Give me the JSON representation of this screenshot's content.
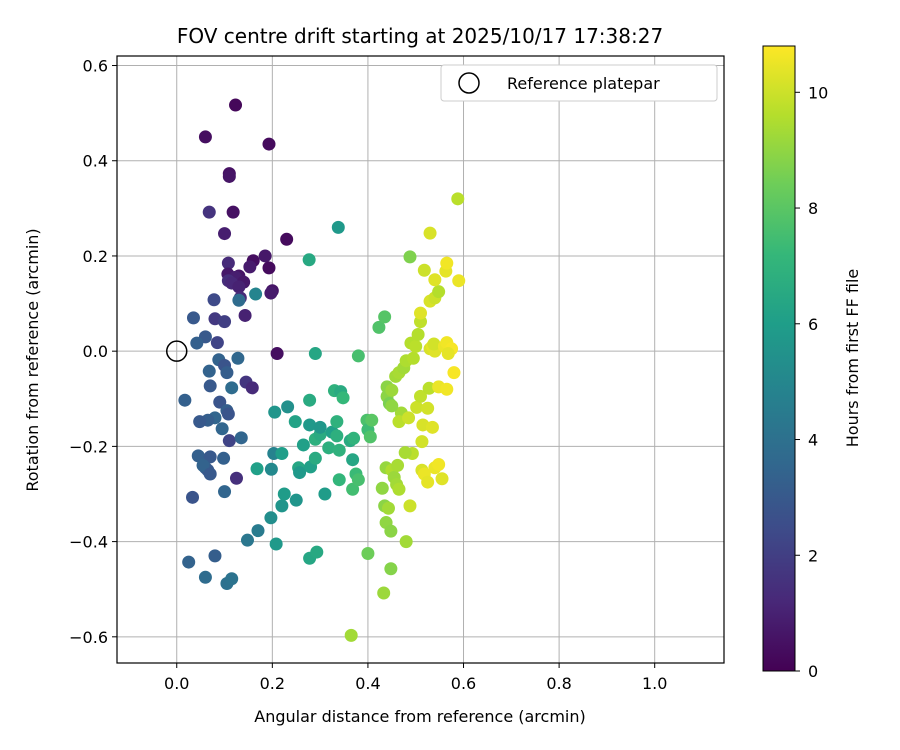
{
  "chart_data": {
    "type": "scatter",
    "title": "FOV centre drift starting at 2025/10/17 17:38:27",
    "xlabel": "Angular distance from reference (arcmin)",
    "ylabel": "Rotation from reference (arcmin)",
    "xlim": [
      -0.125,
      1.145
    ],
    "ylim": [
      -0.655,
      0.62
    ],
    "xticks": [
      0.0,
      0.2,
      0.4,
      0.6,
      0.8,
      1.0
    ],
    "xtick_labels": [
      "0.0",
      "0.2",
      "0.4",
      "0.6",
      "0.8",
      "1.0"
    ],
    "yticks": [
      -0.6,
      -0.4,
      -0.2,
      0.0,
      0.2,
      0.4,
      0.6
    ],
    "ytick_labels": [
      "−0.6",
      "−0.4",
      "−0.2",
      "0.0",
      "0.2",
      "0.4",
      "0.6"
    ],
    "grid": true,
    "legend": {
      "placement": "top-right",
      "entries": [
        "Reference platepar"
      ]
    },
    "reference_point": {
      "x": 0.0,
      "y": 0.0
    },
    "colorbar": {
      "label": "Hours from first FF file",
      "range": [
        0,
        10.8
      ],
      "ticks": [
        0,
        2,
        4,
        6,
        8,
        10
      ],
      "tick_labels": [
        "0",
        "2",
        "4",
        "6",
        "8",
        "10"
      ],
      "colormap": "viridis"
    },
    "points": [
      {
        "x": 0.123,
        "y": 0.517,
        "h": 0.2
      },
      {
        "x": 0.06,
        "y": 0.45,
        "h": 0.4
      },
      {
        "x": 0.193,
        "y": 0.435,
        "h": 0.3
      },
      {
        "x": 0.11,
        "y": 0.373,
        "h": 0.5
      },
      {
        "x": 0.11,
        "y": 0.367,
        "h": 0.6
      },
      {
        "x": 0.068,
        "y": 0.292,
        "h": 1.6
      },
      {
        "x": 0.118,
        "y": 0.292,
        "h": 0.5
      },
      {
        "x": 0.1,
        "y": 0.247,
        "h": 0.9
      },
      {
        "x": 0.23,
        "y": 0.235,
        "h": 0.3
      },
      {
        "x": 0.185,
        "y": 0.2,
        "h": 0.7
      },
      {
        "x": 0.16,
        "y": 0.19,
        "h": 0.4
      },
      {
        "x": 0.108,
        "y": 0.185,
        "h": 1.3
      },
      {
        "x": 0.153,
        "y": 0.177,
        "h": 0.8
      },
      {
        "x": 0.193,
        "y": 0.175,
        "h": 0.3
      },
      {
        "x": 0.107,
        "y": 0.162,
        "h": 0.7
      },
      {
        "x": 0.13,
        "y": 0.158,
        "h": 0.6
      },
      {
        "x": 0.123,
        "y": 0.155,
        "h": 0.9
      },
      {
        "x": 0.108,
        "y": 0.148,
        "h": 1.4
      },
      {
        "x": 0.14,
        "y": 0.145,
        "h": 0.7
      },
      {
        "x": 0.115,
        "y": 0.143,
        "h": 1.2
      },
      {
        "x": 0.13,
        "y": 0.135,
        "h": 1.0
      },
      {
        "x": 0.2,
        "y": 0.127,
        "h": 0.6
      },
      {
        "x": 0.197,
        "y": 0.122,
        "h": 0.8
      },
      {
        "x": 0.165,
        "y": 0.12,
        "h": 4.9
      },
      {
        "x": 0.133,
        "y": 0.112,
        "h": 1.3
      },
      {
        "x": 0.13,
        "y": 0.107,
        "h": 3.8
      },
      {
        "x": 0.078,
        "y": 0.108,
        "h": 2.4
      },
      {
        "x": 0.143,
        "y": 0.075,
        "h": 1.0
      },
      {
        "x": 0.035,
        "y": 0.07,
        "h": 3.0
      },
      {
        "x": 0.08,
        "y": 0.068,
        "h": 1.8
      },
      {
        "x": 0.1,
        "y": 0.062,
        "h": 2.0
      },
      {
        "x": 0.06,
        "y": 0.03,
        "h": 3.0
      },
      {
        "x": 0.042,
        "y": 0.017,
        "h": 3.3
      },
      {
        "x": 0.085,
        "y": 0.018,
        "h": 2.2
      },
      {
        "x": 0.21,
        "y": -0.005,
        "h": 0.4
      },
      {
        "x": 0.088,
        "y": -0.018,
        "h": 3.4
      },
      {
        "x": 0.128,
        "y": -0.015,
        "h": 3.6
      },
      {
        "x": 0.1,
        "y": -0.03,
        "h": 2.8
      },
      {
        "x": 0.068,
        "y": -0.042,
        "h": 3.4
      },
      {
        "x": 0.105,
        "y": -0.045,
        "h": 3.2
      },
      {
        "x": 0.145,
        "y": -0.065,
        "h": 1.7
      },
      {
        "x": 0.07,
        "y": -0.073,
        "h": 3.0
      },
      {
        "x": 0.115,
        "y": -0.077,
        "h": 3.8
      },
      {
        "x": 0.158,
        "y": -0.077,
        "h": 1.3
      },
      {
        "x": 0.017,
        "y": -0.103,
        "h": 3.3
      },
      {
        "x": 0.09,
        "y": -0.107,
        "h": 2.8
      },
      {
        "x": 0.105,
        "y": -0.125,
        "h": 3.2
      },
      {
        "x": 0.108,
        "y": -0.132,
        "h": 2.8
      },
      {
        "x": 0.08,
        "y": -0.14,
        "h": 3.5
      },
      {
        "x": 0.065,
        "y": -0.145,
        "h": 3.2
      },
      {
        "x": 0.048,
        "y": -0.148,
        "h": 3.0
      },
      {
        "x": 0.095,
        "y": -0.163,
        "h": 3.5
      },
      {
        "x": 0.11,
        "y": -0.188,
        "h": 2.2
      },
      {
        "x": 0.135,
        "y": -0.182,
        "h": 3.5
      },
      {
        "x": 0.045,
        "y": -0.22,
        "h": 3.3
      },
      {
        "x": 0.07,
        "y": -0.222,
        "h": 3.0
      },
      {
        "x": 0.098,
        "y": -0.225,
        "h": 3.3
      },
      {
        "x": 0.06,
        "y": -0.245,
        "h": 3.2
      },
      {
        "x": 0.065,
        "y": -0.25,
        "h": 3.0
      },
      {
        "x": 0.055,
        "y": -0.24,
        "h": 3.4
      },
      {
        "x": 0.07,
        "y": -0.258,
        "h": 3.0
      },
      {
        "x": 0.125,
        "y": -0.267,
        "h": 1.5
      },
      {
        "x": 0.1,
        "y": -0.295,
        "h": 3.5
      },
      {
        "x": 0.033,
        "y": -0.307,
        "h": 2.8
      },
      {
        "x": 0.025,
        "y": -0.443,
        "h": 3.4
      },
      {
        "x": 0.06,
        "y": -0.475,
        "h": 3.8
      },
      {
        "x": 0.08,
        "y": -0.43,
        "h": 3.2
      },
      {
        "x": 0.105,
        "y": -0.488,
        "h": 4.0
      },
      {
        "x": 0.115,
        "y": -0.478,
        "h": 4.1
      },
      {
        "x": 0.148,
        "y": -0.397,
        "h": 4.3
      },
      {
        "x": 0.17,
        "y": -0.377,
        "h": 4.5
      },
      {
        "x": 0.197,
        "y": -0.35,
        "h": 5.3
      },
      {
        "x": 0.208,
        "y": -0.405,
        "h": 5.8
      },
      {
        "x": 0.22,
        "y": -0.325,
        "h": 5.6
      },
      {
        "x": 0.225,
        "y": -0.3,
        "h": 5.9
      },
      {
        "x": 0.25,
        "y": -0.313,
        "h": 5.6
      },
      {
        "x": 0.198,
        "y": -0.248,
        "h": 5.1
      },
      {
        "x": 0.203,
        "y": -0.215,
        "h": 4.8
      },
      {
        "x": 0.22,
        "y": -0.215,
        "h": 6.0
      },
      {
        "x": 0.168,
        "y": -0.247,
        "h": 6.1
      },
      {
        "x": 0.205,
        "y": -0.128,
        "h": 5.6
      },
      {
        "x": 0.232,
        "y": -0.117,
        "h": 5.4
      },
      {
        "x": 0.248,
        "y": -0.148,
        "h": 6.2
      },
      {
        "x": 0.265,
        "y": -0.197,
        "h": 6.1
      },
      {
        "x": 0.255,
        "y": -0.245,
        "h": 6.4
      },
      {
        "x": 0.257,
        "y": -0.255,
        "h": 5.8
      },
      {
        "x": 0.28,
        "y": -0.243,
        "h": 6.1
      },
      {
        "x": 0.29,
        "y": -0.225,
        "h": 6.6
      },
      {
        "x": 0.278,
        "y": -0.435,
        "h": 6.4
      },
      {
        "x": 0.293,
        "y": -0.422,
        "h": 6.5
      },
      {
        "x": 0.31,
        "y": -0.3,
        "h": 5.9
      },
      {
        "x": 0.29,
        "y": -0.185,
        "h": 6.8
      },
      {
        "x": 0.3,
        "y": -0.175,
        "h": 6.6
      },
      {
        "x": 0.278,
        "y": -0.155,
        "h": 5.8
      },
      {
        "x": 0.3,
        "y": -0.16,
        "h": 5.7
      },
      {
        "x": 0.278,
        "y": -0.103,
        "h": 6.6
      },
      {
        "x": 0.318,
        "y": -0.203,
        "h": 6.8
      },
      {
        "x": 0.325,
        "y": -0.17,
        "h": 6.1
      },
      {
        "x": 0.335,
        "y": -0.178,
        "h": 6.8
      },
      {
        "x": 0.335,
        "y": -0.148,
        "h": 6.9
      },
      {
        "x": 0.33,
        "y": -0.083,
        "h": 6.9
      },
      {
        "x": 0.343,
        "y": -0.085,
        "h": 6.6
      },
      {
        "x": 0.34,
        "y": -0.208,
        "h": 6.9
      },
      {
        "x": 0.348,
        "y": -0.098,
        "h": 7.2
      },
      {
        "x": 0.363,
        "y": -0.188,
        "h": 6.6
      },
      {
        "x": 0.37,
        "y": -0.183,
        "h": 7.0
      },
      {
        "x": 0.368,
        "y": -0.228,
        "h": 6.4
      },
      {
        "x": 0.375,
        "y": -0.258,
        "h": 7.3
      },
      {
        "x": 0.368,
        "y": -0.29,
        "h": 7.5
      },
      {
        "x": 0.38,
        "y": -0.27,
        "h": 7.6
      },
      {
        "x": 0.34,
        "y": -0.27,
        "h": 7.1
      },
      {
        "x": 0.29,
        "y": -0.005,
        "h": 6.4
      },
      {
        "x": 0.277,
        "y": 0.192,
        "h": 6.5
      },
      {
        "x": 0.338,
        "y": 0.26,
        "h": 5.8
      },
      {
        "x": 0.38,
        "y": -0.01,
        "h": 7.6
      },
      {
        "x": 0.398,
        "y": -0.145,
        "h": 7.7
      },
      {
        "x": 0.4,
        "y": -0.165,
        "h": 7.4
      },
      {
        "x": 0.405,
        "y": -0.18,
        "h": 7.8
      },
      {
        "x": 0.408,
        "y": -0.145,
        "h": 8.0
      },
      {
        "x": 0.423,
        "y": 0.05,
        "h": 7.8
      },
      {
        "x": 0.435,
        "y": 0.072,
        "h": 7.9
      },
      {
        "x": 0.4,
        "y": -0.425,
        "h": 8.4
      },
      {
        "x": 0.365,
        "y": -0.597,
        "h": 9.3
      },
      {
        "x": 0.433,
        "y": -0.508,
        "h": 9.2
      },
      {
        "x": 0.448,
        "y": -0.457,
        "h": 8.8
      },
      {
        "x": 0.43,
        "y": -0.288,
        "h": 9.0
      },
      {
        "x": 0.435,
        "y": -0.325,
        "h": 8.9
      },
      {
        "x": 0.443,
        "y": -0.33,
        "h": 9.3
      },
      {
        "x": 0.438,
        "y": -0.36,
        "h": 9.0
      },
      {
        "x": 0.448,
        "y": -0.378,
        "h": 8.9
      },
      {
        "x": 0.48,
        "y": -0.4,
        "h": 9.3
      },
      {
        "x": 0.438,
        "y": -0.245,
        "h": 9.1
      },
      {
        "x": 0.45,
        "y": -0.25,
        "h": 9.5
      },
      {
        "x": 0.455,
        "y": -0.265,
        "h": 9.2
      },
      {
        "x": 0.46,
        "y": -0.28,
        "h": 9.3
      },
      {
        "x": 0.465,
        "y": -0.29,
        "h": 9.5
      },
      {
        "x": 0.488,
        "y": -0.325,
        "h": 10.0
      },
      {
        "x": 0.493,
        "y": -0.215,
        "h": 9.7
      },
      {
        "x": 0.478,
        "y": -0.213,
        "h": 9.4
      },
      {
        "x": 0.462,
        "y": -0.24,
        "h": 9.4
      },
      {
        "x": 0.47,
        "y": -0.13,
        "h": 9.3
      },
      {
        "x": 0.465,
        "y": -0.148,
        "h": 9.7
      },
      {
        "x": 0.485,
        "y": -0.14,
        "h": 10.0
      },
      {
        "x": 0.44,
        "y": -0.075,
        "h": 8.9
      },
      {
        "x": 0.44,
        "y": -0.095,
        "h": 8.9
      },
      {
        "x": 0.445,
        "y": -0.11,
        "h": 8.6
      },
      {
        "x": 0.45,
        "y": -0.115,
        "h": 9.0
      },
      {
        "x": 0.45,
        "y": -0.082,
        "h": 9.2
      },
      {
        "x": 0.458,
        "y": -0.053,
        "h": 9.3
      },
      {
        "x": 0.465,
        "y": -0.045,
        "h": 9.4
      },
      {
        "x": 0.475,
        "y": -0.035,
        "h": 9.3
      },
      {
        "x": 0.48,
        "y": -0.02,
        "h": 9.5
      },
      {
        "x": 0.495,
        "y": -0.015,
        "h": 9.6
      },
      {
        "x": 0.488,
        "y": 0.198,
        "h": 8.7
      },
      {
        "x": 0.49,
        "y": 0.017,
        "h": 9.6
      },
      {
        "x": 0.5,
        "y": 0.01,
        "h": 9.7
      },
      {
        "x": 0.505,
        "y": 0.035,
        "h": 9.6
      },
      {
        "x": 0.51,
        "y": 0.062,
        "h": 9.8
      },
      {
        "x": 0.51,
        "y": 0.08,
        "h": 10.3
      },
      {
        "x": 0.502,
        "y": -0.118,
        "h": 10.0
      },
      {
        "x": 0.51,
        "y": -0.095,
        "h": 9.8
      },
      {
        "x": 0.528,
        "y": -0.078,
        "h": 9.7
      },
      {
        "x": 0.525,
        "y": -0.12,
        "h": 10.1
      },
      {
        "x": 0.515,
        "y": -0.155,
        "h": 10.2
      },
      {
        "x": 0.535,
        "y": -0.16,
        "h": 10.3
      },
      {
        "x": 0.513,
        "y": -0.19,
        "h": 10.1
      },
      {
        "x": 0.513,
        "y": -0.25,
        "h": 10.2
      },
      {
        "x": 0.518,
        "y": -0.258,
        "h": 10.5
      },
      {
        "x": 0.525,
        "y": -0.275,
        "h": 10.4
      },
      {
        "x": 0.54,
        "y": -0.245,
        "h": 10.5
      },
      {
        "x": 0.548,
        "y": -0.238,
        "h": 10.6
      },
      {
        "x": 0.555,
        "y": -0.268,
        "h": 10.3
      },
      {
        "x": 0.548,
        "y": -0.075,
        "h": 10.5
      },
      {
        "x": 0.565,
        "y": -0.08,
        "h": 10.6
      },
      {
        "x": 0.58,
        "y": -0.045,
        "h": 10.7
      },
      {
        "x": 0.53,
        "y": 0.005,
        "h": 10.2
      },
      {
        "x": 0.535,
        "y": 0.01,
        "h": 10.4
      },
      {
        "x": 0.54,
        "y": 0.0,
        "h": 10.3
      },
      {
        "x": 0.538,
        "y": 0.015,
        "h": 10.1
      },
      {
        "x": 0.56,
        "y": 0.01,
        "h": 10.5
      },
      {
        "x": 0.565,
        "y": 0.018,
        "h": 10.6
      },
      {
        "x": 0.575,
        "y": 0.005,
        "h": 10.7
      },
      {
        "x": 0.568,
        "y": -0.005,
        "h": 10.4
      },
      {
        "x": 0.518,
        "y": 0.17,
        "h": 10.0
      },
      {
        "x": 0.53,
        "y": 0.248,
        "h": 10.2
      },
      {
        "x": 0.53,
        "y": 0.105,
        "h": 10.2
      },
      {
        "x": 0.54,
        "y": 0.112,
        "h": 10.0
      },
      {
        "x": 0.548,
        "y": 0.125,
        "h": 9.6
      },
      {
        "x": 0.54,
        "y": 0.15,
        "h": 10.3
      },
      {
        "x": 0.563,
        "y": 0.168,
        "h": 10.4
      },
      {
        "x": 0.565,
        "y": 0.185,
        "h": 10.6
      },
      {
        "x": 0.59,
        "y": 0.148,
        "h": 10.5
      },
      {
        "x": 0.588,
        "y": 0.32,
        "h": 9.7
      }
    ]
  }
}
